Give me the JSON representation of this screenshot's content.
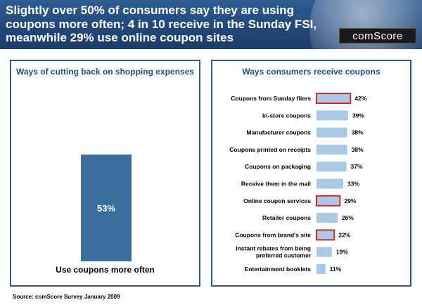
{
  "header": {
    "title": "Slightly over 50% of consumers say they are using coupons more often; 4 in 10 receive in the Sunday FSI, meanwhile 29% use online coupon sites",
    "logo": "comScore"
  },
  "chart_data": [
    {
      "type": "bar",
      "title": "Ways of cutting back on shopping expenses",
      "categories": [
        "Use coupons more often"
      ],
      "values": [
        53
      ],
      "value_labels": [
        "53%"
      ],
      "colors": {
        "bar": "#3a6e9f",
        "label": "#ffffff"
      }
    },
    {
      "type": "bar",
      "orientation": "horizontal",
      "title": "Ways consumers receive coupons",
      "categories": [
        "Coupons from Sunday fliers",
        "In-store coupons",
        "Manufacturer coupons",
        "Coupons printed on receipts",
        "Coupons on packaging",
        "Receive them in the mail",
        "Online coupon services",
        "Retailer coupons",
        "Coupons from brand's site",
        "Instant rebates from being preferred customer",
        "Entertainment booklets"
      ],
      "values": [
        42,
        39,
        38,
        38,
        37,
        33,
        29,
        26,
        22,
        19,
        11
      ],
      "value_labels": [
        "42%",
        "39%",
        "38%",
        "38%",
        "37%",
        "33%",
        "29%",
        "26%",
        "22%",
        "19%",
        "11%"
      ],
      "highlighted": [
        true,
        false,
        false,
        false,
        false,
        false,
        true,
        false,
        true,
        false,
        false
      ],
      "colors": {
        "bar": "#a9c9e4",
        "highlight_border": "#d42a2a"
      }
    }
  ],
  "footer": {
    "source": "Source: comScore Survey January 2009"
  }
}
